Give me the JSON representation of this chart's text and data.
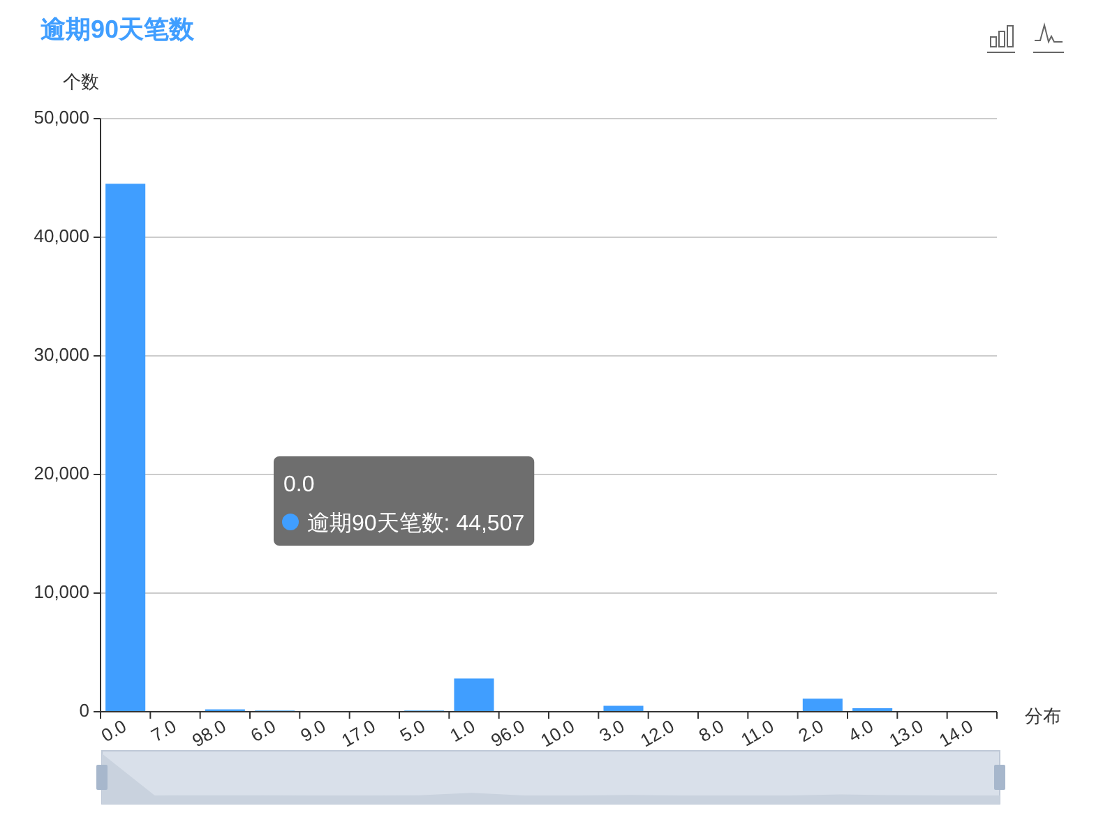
{
  "chart_data": {
    "type": "bar",
    "title": "逾期90天笔数",
    "ylabel": "个数",
    "xlabel": "分布",
    "categories": [
      "0.0",
      "7.0",
      "98.0",
      "6.0",
      "9.0",
      "17.0",
      "5.0",
      "1.0",
      "96.0",
      "10.0",
      "3.0",
      "12.0",
      "8.0",
      "11.0",
      "2.0",
      "4.0",
      "13.0",
      "14.0"
    ],
    "values": [
      44507,
      30,
      200,
      100,
      0,
      0,
      100,
      2800,
      0,
      0,
      500,
      0,
      0,
      0,
      1100,
      300,
      0,
      0
    ],
    "color": "#409eff",
    "ylim": [
      0,
      50000
    ],
    "yticks": [
      0,
      {
        "value": 10000,
        "label": "10,000"
      },
      {
        "value": 20000,
        "label": "20,000"
      },
      {
        "value": 30000,
        "label": "30,000"
      },
      {
        "value": 40000,
        "label": "40,000"
      },
      {
        "value": 50000,
        "label": "50,000"
      }
    ],
    "grid": "y",
    "annotations": [
      "0.0\n逾期90天笔数: 44,507"
    ]
  }
}
